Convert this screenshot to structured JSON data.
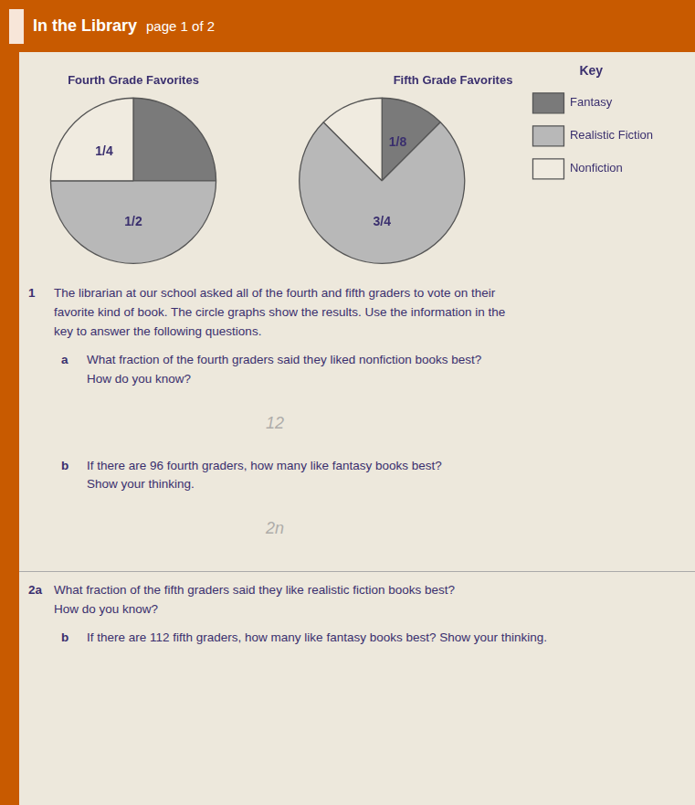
{
  "title": "In the Library",
  "subtitle": "page 1 of 2",
  "chart_data": [
    {
      "type": "pie",
      "title": "Fourth Grade Favorites",
      "categories": [
        "Fantasy",
        "Realistic Fiction",
        "Nonfiction"
      ],
      "values": [
        0.25,
        0.5,
        0.25
      ],
      "colors": [
        "#7a7a7a",
        "#b8b8b8",
        "#f0ebe0"
      ],
      "data_labels": true,
      "value_labels": [
        null,
        "1/2",
        "1/4"
      ]
    },
    {
      "type": "pie",
      "title": "Fifth Grade Favorites",
      "categories": [
        "Fantasy",
        "Realistic Fiction",
        "Nonfiction"
      ],
      "values": [
        0.125,
        0.75,
        0.125
      ],
      "colors": [
        "#7a7a7a",
        "#b8b8b8",
        "#f0ebe0"
      ],
      "data_labels": true,
      "value_labels": [
        "1/8",
        "3/4",
        null
      ],
      "legend": "right",
      "legend_title": "Key"
    }
  ],
  "annotations": [
    {
      "label": "1",
      "text": "The librarian at our school asked all of the fourth and fifth graders to vote on their\nfavorite kind of book. The circle graphs show the results. Use the information in the\nkey to answer the following questions."
    },
    {
      "label": "a",
      "text": "What fraction of the fourth graders said they liked nonfiction books best?\nHow do you know?",
      "answer": "12"
    },
    {
      "label": "b",
      "text": "If there are 96 fourth graders, how many like fantasy books best?\nShow your thinking.",
      "answer": "2n"
    },
    {
      "label": "2a",
      "text": "What fraction of the fifth graders said they like realistic fiction books best?\nHow do you know?"
    },
    {
      "label": "b",
      "text": "If there are 112 fifth graders, how many like fantasy books best? Show your thinking."
    }
  ]
}
